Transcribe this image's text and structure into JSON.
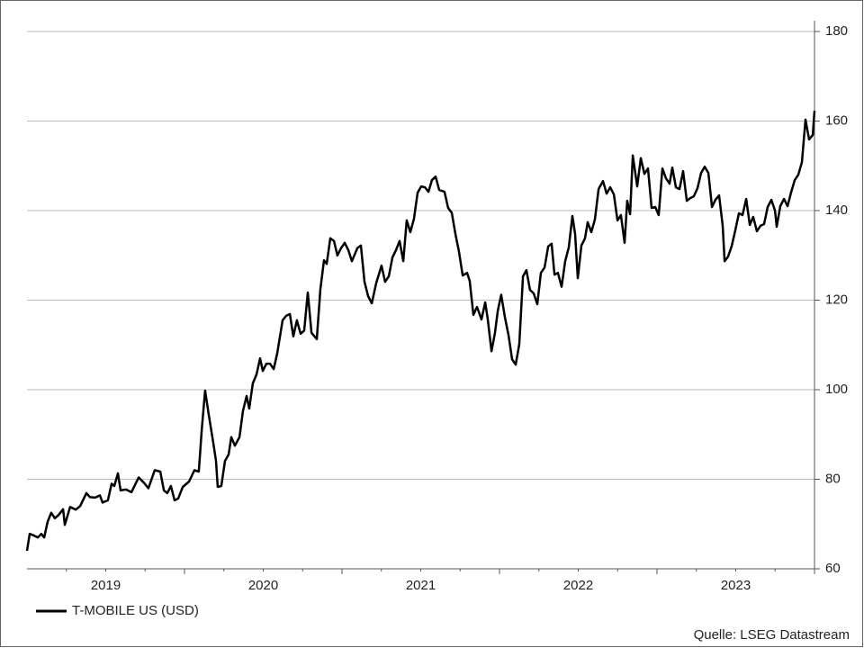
{
  "chart_data": {
    "type": "line",
    "x": [
      2019.0,
      2019.017,
      2019.046,
      2019.069,
      2019.091,
      2019.109,
      2019.131,
      2019.154,
      2019.177,
      2019.2,
      2019.229,
      2019.24,
      2019.274,
      2019.309,
      2019.337,
      2019.377,
      2019.4,
      2019.434,
      2019.463,
      2019.48,
      2019.514,
      2019.537,
      2019.554,
      2019.577,
      2019.594,
      2019.629,
      2019.663,
      2019.709,
      2019.743,
      2019.771,
      2019.811,
      2019.846,
      2019.869,
      2019.891,
      2019.914,
      2019.937,
      2019.96,
      2019.989,
      2020.029,
      2020.063,
      2020.091,
      2020.109,
      2020.131,
      2020.154,
      2020.183,
      2020.2,
      2020.211,
      2020.234,
      2020.257,
      2020.28,
      2020.297,
      2020.32,
      2020.349,
      2020.371,
      2020.394,
      2020.411,
      2020.434,
      2020.457,
      2020.48,
      2020.497,
      2020.52,
      2020.543,
      2020.566,
      2020.589,
      2020.623,
      2020.646,
      2020.669,
      2020.691,
      2020.714,
      2020.737,
      2020.76,
      2020.783,
      2020.806,
      2020.84,
      2020.863,
      2020.886,
      2020.903,
      2020.926,
      2020.949,
      2020.971,
      2020.994,
      2021.017,
      2021.04,
      2021.063,
      2021.097,
      2021.12,
      2021.143,
      2021.166,
      2021.189,
      2021.217,
      2021.251,
      2021.274,
      2021.297,
      2021.32,
      2021.343,
      2021.366,
      2021.389,
      2021.411,
      2021.434,
      2021.457,
      2021.48,
      2021.503,
      2021.526,
      2021.549,
      2021.571,
      2021.594,
      2021.617,
      2021.651,
      2021.674,
      2021.697,
      2021.72,
      2021.743,
      2021.766,
      2021.794,
      2021.811,
      2021.834,
      2021.857,
      2021.886,
      2021.909,
      2021.926,
      2021.949,
      2021.971,
      2021.989,
      2022.011,
      2022.034,
      2022.057,
      2022.08,
      2022.103,
      2022.126,
      2022.149,
      2022.171,
      2022.194,
      2022.217,
      2022.24,
      2022.263,
      2022.286,
      2022.309,
      2022.331,
      2022.349,
      2022.371,
      2022.394,
      2022.417,
      2022.44,
      2022.463,
      2022.48,
      2022.497,
      2022.52,
      2022.543,
      2022.56,
      2022.583,
      2022.606,
      2022.629,
      2022.657,
      2022.68,
      2022.703,
      2022.726,
      2022.749,
      2022.771,
      2022.794,
      2022.811,
      2022.829,
      2022.846,
      2022.874,
      2022.897,
      2022.92,
      2022.943,
      2022.966,
      2022.989,
      2023.011,
      2023.034,
      2023.057,
      2023.08,
      2023.097,
      2023.12,
      2023.143,
      2023.166,
      2023.189,
      2023.211,
      2023.234,
      2023.257,
      2023.28,
      2023.303,
      2023.326,
      2023.349,
      2023.371,
      2023.394,
      2023.417,
      2023.429,
      2023.451,
      2023.474,
      2023.497,
      2023.52,
      2023.543,
      2023.566,
      2023.589,
      2023.611,
      2023.634,
      2023.657,
      2023.68,
      2023.703,
      2023.726,
      2023.749,
      2023.76,
      2023.783,
      2023.806,
      2023.829,
      2023.851,
      2023.874,
      2023.897,
      2023.92,
      2023.943,
      2023.966,
      2023.989,
      2024.0
    ],
    "series": [
      {
        "name": "T-MOBILE US (USD)",
        "color": "#000000",
        "values": [
          64,
          67.8,
          67.4,
          67,
          67.8,
          67,
          70.5,
          72.5,
          71.3,
          72,
          73.3,
          69.8,
          73.8,
          73.2,
          74,
          76.9,
          76,
          75.9,
          76.4,
          74.8,
          75.3,
          79,
          78.5,
          81.3,
          77.5,
          77.7,
          77.1,
          80.4,
          79.2,
          78,
          82,
          81.7,
          77.5,
          76.9,
          78.5,
          75.3,
          75.7,
          78.3,
          79.5,
          82,
          81.7,
          90.9,
          99.8,
          94.5,
          88.1,
          84.1,
          78.3,
          78.5,
          84.1,
          85.5,
          89.4,
          87.5,
          89.4,
          95.2,
          98.6,
          95.8,
          101.4,
          103.4,
          107,
          104.2,
          105.8,
          105.8,
          104.6,
          108.2,
          115.5,
          116.5,
          116.9,
          111.9,
          115.5,
          112.5,
          113.2,
          121.7,
          112.7,
          111.3,
          122.5,
          128.9,
          128.1,
          133.8,
          133.2,
          130,
          131.6,
          132.8,
          131.2,
          128.7,
          131.6,
          132.2,
          124.1,
          120.9,
          119.3,
          123.8,
          127.7,
          124.1,
          125.3,
          129.5,
          131.2,
          133.2,
          128.7,
          137.8,
          135.2,
          138.2,
          144,
          145.4,
          145.2,
          144.2,
          146.8,
          147.6,
          144.6,
          144.2,
          140.6,
          139.5,
          134.8,
          130.8,
          125.5,
          126.1,
          124.3,
          116.7,
          118.5,
          115.7,
          119.5,
          115.7,
          108.6,
          112.6,
          117.6,
          121.2,
          116.2,
          112.2,
          106.8,
          105.6,
          110.2,
          125.3,
          126.7,
          122.3,
          121.5,
          119.1,
          126.1,
          127.3,
          132,
          132.6,
          125.7,
          126.1,
          123,
          128.7,
          131.8,
          138.8,
          134.8,
          124.9,
          132.2,
          133.8,
          137.4,
          135.2,
          138,
          144.8,
          146.6,
          143.8,
          145.2,
          143.6,
          137.8,
          139,
          132.8,
          142.2,
          139.2,
          152.3,
          145.4,
          151.7,
          148.2,
          149.4,
          140.6,
          140.8,
          139,
          149.4,
          147.2,
          146,
          149.6,
          145.2,
          144.8,
          148.8,
          142.2,
          142.8,
          143.2,
          145,
          148.4,
          149.8,
          148.4,
          140.8,
          142.4,
          143.4,
          136.6,
          128.7,
          129.7,
          132,
          135.6,
          139.4,
          139,
          142.6,
          136.8,
          138.6,
          135.4,
          136.6,
          137,
          140.8,
          142.4,
          140,
          136.4,
          141,
          142.6,
          141,
          144,
          146.8,
          148,
          150.8,
          160.3,
          155.9,
          156.9,
          162.3
        ]
      }
    ],
    "xlim": [
      2019,
      2024
    ],
    "xticks": [
      {
        "value": 2019.5,
        "label": "2019"
      },
      {
        "value": 2020.5,
        "label": "2020"
      },
      {
        "value": 2021.5,
        "label": "2021"
      },
      {
        "value": 2022.5,
        "label": "2022"
      },
      {
        "value": 2023.5,
        "label": "2023"
      }
    ],
    "xminorticks": [
      2019.25,
      2019.5,
      2019.75,
      2020,
      2020.25,
      2020.5,
      2020.75,
      2021,
      2021.25,
      2021.5,
      2021.75,
      2022,
      2022.25,
      2022.5,
      2022.75,
      2023,
      2023.25,
      2023.5,
      2023.75,
      2024
    ],
    "ylim": [
      60,
      180
    ],
    "yticks": [
      60,
      80,
      100,
      120,
      140,
      160,
      180
    ],
    "grid": true,
    "legend": "bottom-left",
    "source": "Quelle: LSEG Datastream"
  }
}
